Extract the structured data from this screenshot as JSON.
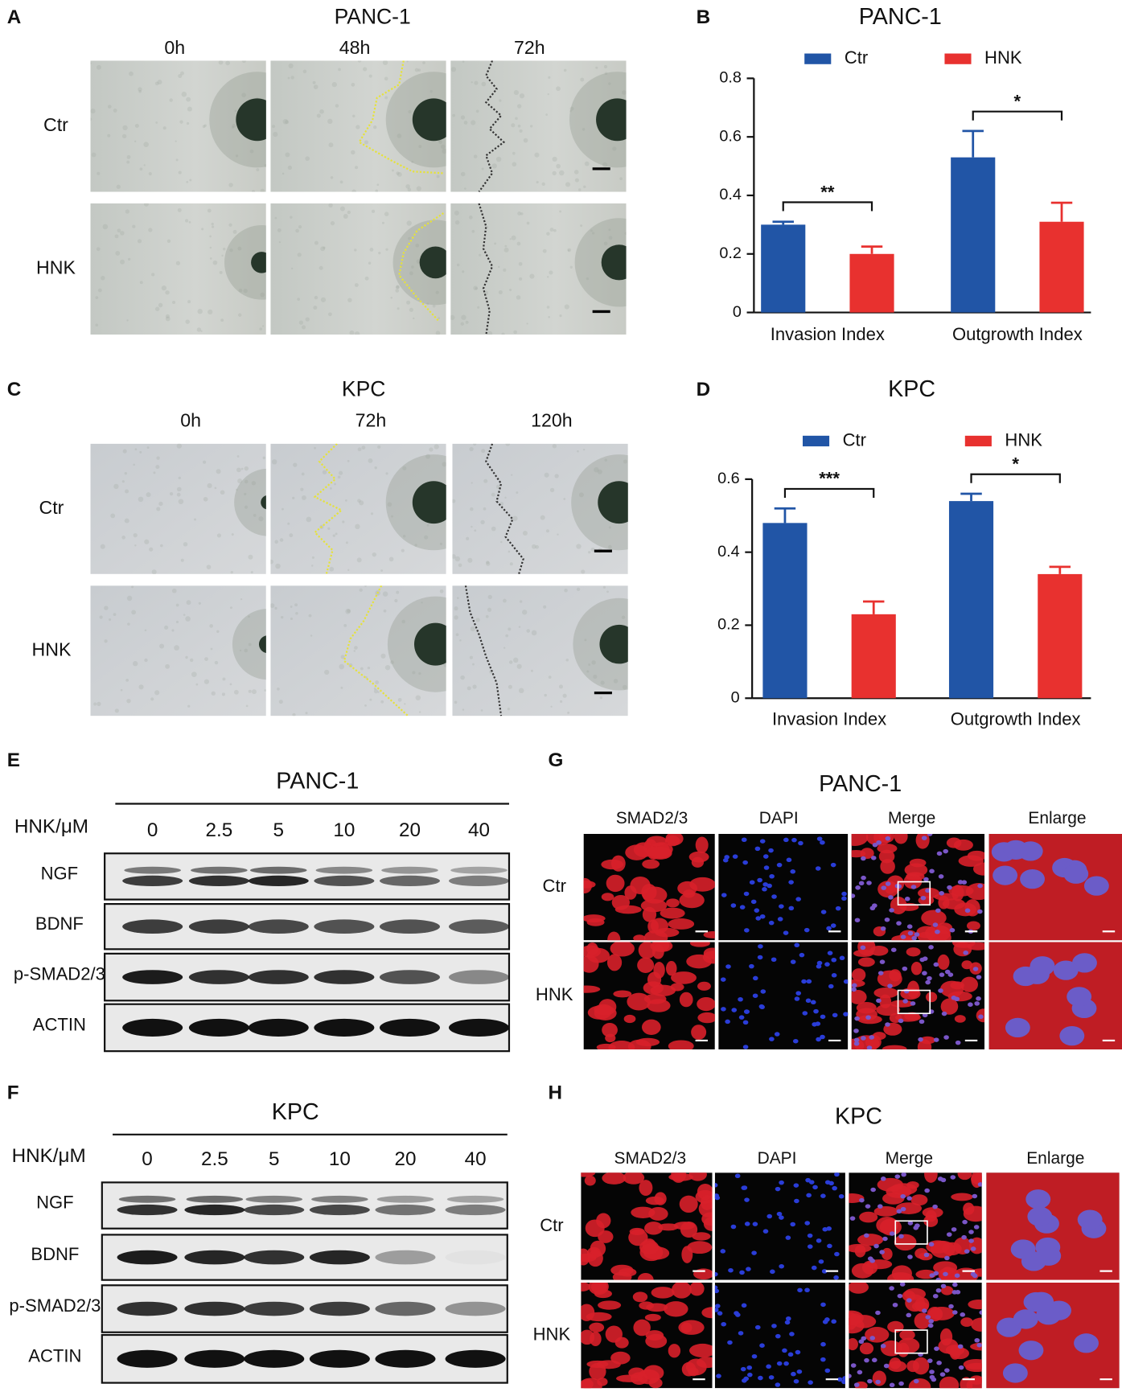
{
  "panels": {
    "A": {
      "letter": "A",
      "title": "PANC-1",
      "columns": [
        "0h",
        "48h",
        "72h"
      ],
      "rows": [
        "Ctr",
        "HNK"
      ]
    },
    "C": {
      "letter": "C",
      "title": "KPC",
      "columns": [
        "0h",
        "72h",
        "120h"
      ],
      "rows": [
        "Ctr",
        "HNK"
      ]
    },
    "E": {
      "letter": "E",
      "title": "PANC-1",
      "dose_label": "HNK/μM",
      "doses": [
        "0",
        "2.5",
        "5",
        "10",
        "20",
        "40"
      ],
      "bands": [
        "NGF",
        "BDNF",
        "p-SMAD2/3",
        "ACTIN"
      ]
    },
    "F": {
      "letter": "F",
      "title": "KPC",
      "dose_label": "HNK/μM",
      "doses": [
        "0",
        "2.5",
        "5",
        "10",
        "20",
        "40"
      ],
      "bands": [
        "NGF",
        "BDNF",
        "p-SMAD2/3",
        "ACTIN"
      ]
    },
    "G": {
      "letter": "G",
      "title": "PANC-1",
      "columns": [
        "SMAD2/3",
        "DAPI",
        "Merge",
        "Enlarge"
      ],
      "rows": [
        "Ctr",
        "HNK"
      ]
    },
    "H": {
      "letter": "H",
      "title": "KPC",
      "columns": [
        "SMAD2/3",
        "DAPI",
        "Merge",
        "Enlarge"
      ],
      "rows": [
        "Ctr",
        "HNK"
      ]
    }
  },
  "chart_data": [
    {
      "type": "bar",
      "letter": "B",
      "title": "PANC-1",
      "categories": [
        "Invasion Index",
        "Outgrowth Index"
      ],
      "series": [
        {
          "name": "Ctr",
          "color": "#2155a6",
          "values": [
            0.3,
            0.53
          ],
          "errors": [
            0.01,
            0.09
          ]
        },
        {
          "name": "HNK",
          "color": "#e8312f",
          "values": [
            0.2,
            0.31
          ],
          "errors": [
            0.025,
            0.065
          ]
        }
      ],
      "significance": [
        "**",
        "*"
      ],
      "ylim": [
        0,
        0.8
      ],
      "yticks": [
        0,
        0.2,
        0.4,
        0.6,
        0.8
      ]
    },
    {
      "type": "bar",
      "letter": "D",
      "title": "KPC",
      "categories": [
        "Invasion Index",
        "Outgrowth Index"
      ],
      "series": [
        {
          "name": "Ctr",
          "color": "#2155a6",
          "values": [
            0.48,
            0.54
          ],
          "errors": [
            0.04,
            0.02
          ]
        },
        {
          "name": "HNK",
          "color": "#e8312f",
          "values": [
            0.23,
            0.34
          ],
          "errors": [
            0.035,
            0.02
          ]
        }
      ],
      "significance": [
        "***",
        "*"
      ],
      "ylim": [
        0,
        0.6
      ],
      "yticks": [
        0,
        0.2,
        0.4,
        0.6
      ]
    }
  ]
}
